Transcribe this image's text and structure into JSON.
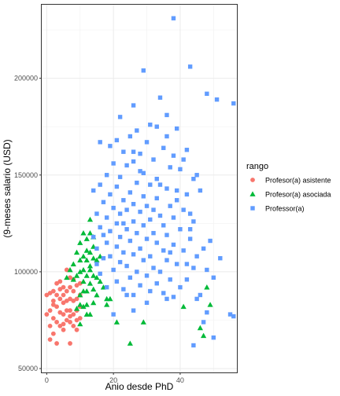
{
  "chart_data": {
    "type": "scatter",
    "title": "",
    "xlabel": "Anio desde PhD",
    "ylabel": "(9-meses salario (USD)",
    "xlim": [
      -1.5,
      57
    ],
    "ylim": [
      48000,
      238000
    ],
    "x_ticks": [
      0,
      20,
      40
    ],
    "y_ticks": [
      50000,
      100000,
      150000,
      200000
    ],
    "y_tick_labels": [
      "50000",
      "100000",
      "150000",
      "200000"
    ],
    "x_minor_ticks": [
      10,
      30,
      50
    ],
    "y_minor_ticks": [
      75000,
      125000,
      175000,
      225000
    ],
    "grid": true,
    "legend": {
      "title": "rango",
      "position": "right",
      "entries": [
        "Profesor(a) asistente",
        "Profesor(a) asociada",
        "Professor(a)"
      ]
    },
    "series": [
      {
        "name": "Profesor(a) asistente",
        "color": "#F8766D",
        "shape": "circle",
        "points": [
          [
            0,
            88000
          ],
          [
            0,
            78000
          ],
          [
            1,
            89000
          ],
          [
            1,
            80000
          ],
          [
            1,
            72000
          ],
          [
            2,
            90000
          ],
          [
            2,
            85000
          ],
          [
            2,
            76000
          ],
          [
            2,
            68000
          ],
          [
            3,
            88000
          ],
          [
            3,
            82000
          ],
          [
            3,
            74000
          ],
          [
            3,
            63000
          ],
          [
            4,
            91000
          ],
          [
            4,
            86000
          ],
          [
            4,
            79000
          ],
          [
            4,
            72000
          ],
          [
            5,
            92000
          ],
          [
            5,
            88000
          ],
          [
            5,
            84000
          ],
          [
            5,
            78000
          ],
          [
            5,
            70000
          ],
          [
            6,
            90000
          ],
          [
            6,
            85000
          ],
          [
            6,
            80000
          ],
          [
            6,
            75000
          ],
          [
            7,
            97000
          ],
          [
            7,
            92000
          ],
          [
            7,
            86000
          ],
          [
            7,
            80000
          ],
          [
            7,
            74000
          ],
          [
            7,
            63000
          ],
          [
            8,
            90000
          ],
          [
            8,
            85000
          ],
          [
            8,
            78000
          ],
          [
            8,
            72000
          ],
          [
            9,
            93000
          ],
          [
            9,
            86000
          ],
          [
            9,
            80000
          ],
          [
            9,
            75000
          ],
          [
            10,
            94000
          ],
          [
            10,
            88000
          ],
          [
            10,
            82000
          ],
          [
            10,
            76000
          ],
          [
            3,
            94000
          ],
          [
            4,
            95000
          ],
          [
            6,
            101000
          ],
          [
            8,
            96000
          ],
          [
            1,
            65000
          ],
          [
            2,
            83000
          ],
          [
            5,
            73000
          ],
          [
            7,
            77000
          ],
          [
            9,
            70000
          ]
        ]
      },
      {
        "name": "Profesor(a) asociada",
        "color": "#00BA38",
        "shape": "triangle",
        "points": [
          [
            6,
            97000
          ],
          [
            7,
            101000
          ],
          [
            8,
            104000
          ],
          [
            8,
            96000
          ],
          [
            9,
            110000
          ],
          [
            9,
            98000
          ],
          [
            10,
            115000
          ],
          [
            10,
            106000
          ],
          [
            10,
            100000
          ],
          [
            10,
            88000
          ],
          [
            10,
            83000
          ],
          [
            10,
            73000
          ],
          [
            11,
            120000
          ],
          [
            11,
            108000
          ],
          [
            11,
            101000
          ],
          [
            11,
            90000
          ],
          [
            11,
            82000
          ],
          [
            12,
            117000
          ],
          [
            12,
            111000
          ],
          [
            12,
            106000
          ],
          [
            12,
            98000
          ],
          [
            12,
            90000
          ],
          [
            12,
            83000
          ],
          [
            13,
            127000
          ],
          [
            13,
            120000
          ],
          [
            13,
            110000
          ],
          [
            13,
            101000
          ],
          [
            13,
            94000
          ],
          [
            13,
            78000
          ],
          [
            14,
            113000
          ],
          [
            14,
            107000
          ],
          [
            14,
            98000
          ],
          [
            14,
            91000
          ],
          [
            14,
            84000
          ],
          [
            15,
            106000
          ],
          [
            15,
            97000
          ],
          [
            15,
            88000
          ],
          [
            16,
            95000
          ],
          [
            17,
            92000
          ],
          [
            18,
            86000
          ],
          [
            19,
            86000
          ],
          [
            18,
            83000
          ],
          [
            25,
            63000
          ],
          [
            29,
            74000
          ],
          [
            41,
            82000
          ],
          [
            46,
            71000
          ],
          [
            47,
            67000
          ],
          [
            48,
            92000
          ],
          [
            49,
            83000
          ],
          [
            21,
            74000
          ],
          [
            12,
            78000
          ],
          [
            9,
            81000
          ],
          [
            16,
            108000
          ],
          [
            11,
            95000
          ],
          [
            13,
            103000
          ],
          [
            14,
            118000
          ]
        ]
      },
      {
        "name": "Professor(a)",
        "color": "#619CFF",
        "shape": "square",
        "points": [
          [
            38,
            231000
          ],
          [
            43,
            206000
          ],
          [
            29,
            204000
          ],
          [
            48,
            192000
          ],
          [
            51,
            189000
          ],
          [
            34,
            190000
          ],
          [
            56,
            187000
          ],
          [
            26,
            186000
          ],
          [
            36,
            181000
          ],
          [
            22,
            180000
          ],
          [
            31,
            176000
          ],
          [
            33,
            175000
          ],
          [
            39,
            174000
          ],
          [
            27,
            173000
          ],
          [
            25,
            170000
          ],
          [
            21,
            168000
          ],
          [
            16,
            167000
          ],
          [
            30,
            167000
          ],
          [
            19,
            165000
          ],
          [
            35,
            164000
          ],
          [
            42,
            163000
          ],
          [
            23,
            162000
          ],
          [
            28,
            161000
          ],
          [
            38,
            160000
          ],
          [
            32,
            158000
          ],
          [
            26,
            157000
          ],
          [
            20,
            156000
          ],
          [
            24,
            155000
          ],
          [
            37,
            154000
          ],
          [
            40,
            153000
          ],
          [
            29,
            151000
          ],
          [
            18,
            150000
          ],
          [
            22,
            149000
          ],
          [
            33,
            148000
          ],
          [
            44,
            148000
          ],
          [
            27,
            146000
          ],
          [
            16,
            145000
          ],
          [
            31,
            145000
          ],
          [
            21,
            144000
          ],
          [
            36,
            143000
          ],
          [
            39,
            142000
          ],
          [
            14,
            142000
          ],
          [
            25,
            141000
          ],
          [
            19,
            140000
          ],
          [
            42,
            140000
          ],
          [
            29,
            139000
          ],
          [
            33,
            138000
          ],
          [
            23,
            137000
          ],
          [
            17,
            136000
          ],
          [
            26,
            135000
          ],
          [
            30,
            134000
          ],
          [
            37,
            134000
          ],
          [
            20,
            133000
          ],
          [
            24,
            132000
          ],
          [
            41,
            132000
          ],
          [
            28,
            131000
          ],
          [
            15,
            130000
          ],
          [
            22,
            130000
          ],
          [
            34,
            129000
          ],
          [
            38,
            128000
          ],
          [
            18,
            128000
          ],
          [
            31,
            127000
          ],
          [
            26,
            126000
          ],
          [
            44,
            126000
          ],
          [
            21,
            125000
          ],
          [
            29,
            124000
          ],
          [
            35,
            124000
          ],
          [
            16,
            123000
          ],
          [
            24,
            122000
          ],
          [
            40,
            122000
          ],
          [
            19,
            121000
          ],
          [
            27,
            120000
          ],
          [
            32,
            120000
          ],
          [
            36,
            119000
          ],
          [
            14,
            118000
          ],
          [
            22,
            118000
          ],
          [
            30,
            117000
          ],
          [
            43,
            117000
          ],
          [
            25,
            116000
          ],
          [
            18,
            115000
          ],
          [
            33,
            115000
          ],
          [
            38,
            114000
          ],
          [
            21,
            113000
          ],
          [
            28,
            112000
          ],
          [
            15,
            112000
          ],
          [
            35,
            111000
          ],
          [
            41,
            111000
          ],
          [
            23,
            110000
          ],
          [
            26,
            109000
          ],
          [
            31,
            108000
          ],
          [
            19,
            108000
          ],
          [
            45,
            108000
          ],
          [
            17,
            107000
          ],
          [
            29,
            106000
          ],
          [
            36,
            106000
          ],
          [
            22,
            105000
          ],
          [
            39,
            104000
          ],
          [
            24,
            103000
          ],
          [
            32,
            102000
          ],
          [
            44,
            102000
          ],
          [
            20,
            101000
          ],
          [
            27,
            100000
          ],
          [
            34,
            100000
          ],
          [
            16,
            99000
          ],
          [
            30,
            98000
          ],
          [
            25,
            97000
          ],
          [
            37,
            96000
          ],
          [
            42,
            96000
          ],
          [
            21,
            95000
          ],
          [
            33,
            94000
          ],
          [
            28,
            93000
          ],
          [
            18,
            92000
          ],
          [
            40,
            92000
          ],
          [
            23,
            91000
          ],
          [
            31,
            90000
          ],
          [
            35,
            89000
          ],
          [
            26,
            88000
          ],
          [
            38,
            87000
          ],
          [
            45,
            86000
          ],
          [
            48,
            79000
          ],
          [
            52,
            107000
          ],
          [
            55,
            78000
          ],
          [
            56,
            77000
          ],
          [
            50,
            66000
          ],
          [
            47,
            74000
          ],
          [
            44,
            62000
          ],
          [
            30,
            84000
          ],
          [
            26,
            80000
          ],
          [
            20,
            78000
          ],
          [
            36,
            86000
          ],
          [
            24,
            88000
          ],
          [
            43,
            130000
          ],
          [
            46,
            142000
          ],
          [
            48,
            101000
          ],
          [
            49,
            116000
          ],
          [
            41,
            158000
          ],
          [
            45,
            150000
          ],
          [
            43,
            122000
          ],
          [
            47,
            112000
          ],
          [
            50,
            97000
          ],
          [
            34,
            145000
          ],
          [
            28,
            152000
          ],
          [
            39,
            137000
          ],
          [
            23,
            125000
          ],
          [
            37,
            110000
          ],
          [
            32,
            132000
          ],
          [
            17,
            119000
          ],
          [
            15,
            104000
          ],
          [
            46,
            88000
          ],
          [
            42,
            104000
          ],
          [
            26,
            162000
          ],
          [
            36,
            170000
          ]
        ]
      }
    ]
  }
}
